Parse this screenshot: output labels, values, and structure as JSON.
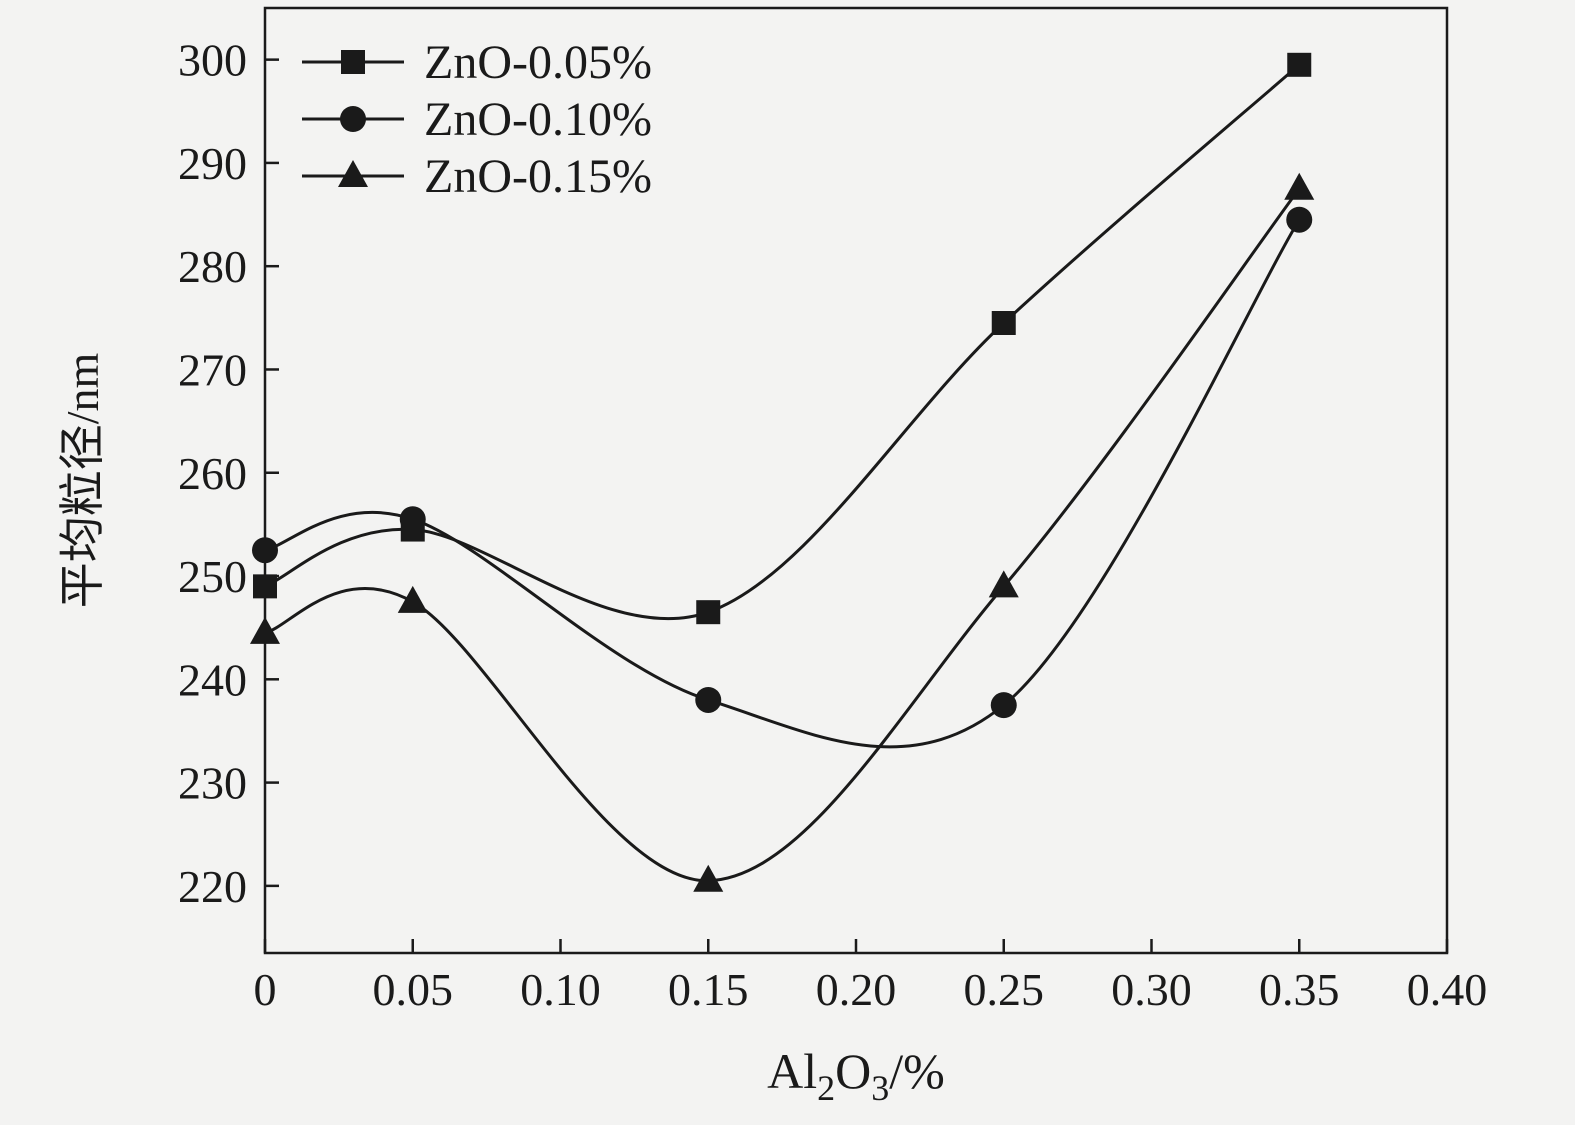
{
  "chart_data": {
    "type": "line",
    "title": "",
    "xlabel": "Al2O3/%",
    "xlabel_parts": [
      {
        "text": "Al",
        "sub": false
      },
      {
        "text": "2",
        "sub": true
      },
      {
        "text": "O",
        "sub": false
      },
      {
        "text": "3",
        "sub": true
      },
      {
        "text": "/%",
        "sub": false
      }
    ],
    "ylabel": "平均粒径/nm",
    "xlim": [
      0,
      0.4
    ],
    "ylim": [
      213.5,
      305
    ],
    "xticks": [
      0,
      0.05,
      0.1,
      0.15,
      0.2,
      0.25,
      0.3,
      0.35,
      0.4
    ],
    "xtick_labels": [
      "0",
      "0.05",
      "0.10",
      "0.15",
      "0.20",
      "0.25",
      "0.30",
      "0.35",
      "0.40"
    ],
    "yticks": [
      220,
      230,
      240,
      250,
      260,
      270,
      280,
      290,
      300
    ],
    "ytick_labels": [
      "220",
      "230",
      "240",
      "250",
      "260",
      "270",
      "280",
      "290",
      "300"
    ],
    "x": [
      0,
      0.05,
      0.15,
      0.25,
      0.35
    ],
    "series": [
      {
        "name": "ZnO-0.05%",
        "marker": "square",
        "values": [
          249.0,
          254.5,
          246.5,
          274.5,
          299.5
        ]
      },
      {
        "name": "ZnO-0.10%",
        "marker": "circle",
        "values": [
          252.5,
          255.5,
          238.0,
          237.5,
          284.5
        ]
      },
      {
        "name": "ZnO-0.15%",
        "marker": "triangle",
        "values": [
          244.5,
          247.5,
          220.5,
          249.0,
          287.5
        ]
      }
    ],
    "legend_position": "top-left",
    "grid": false,
    "line_color": "#1a1a1a",
    "background": "#f3f3f2"
  }
}
